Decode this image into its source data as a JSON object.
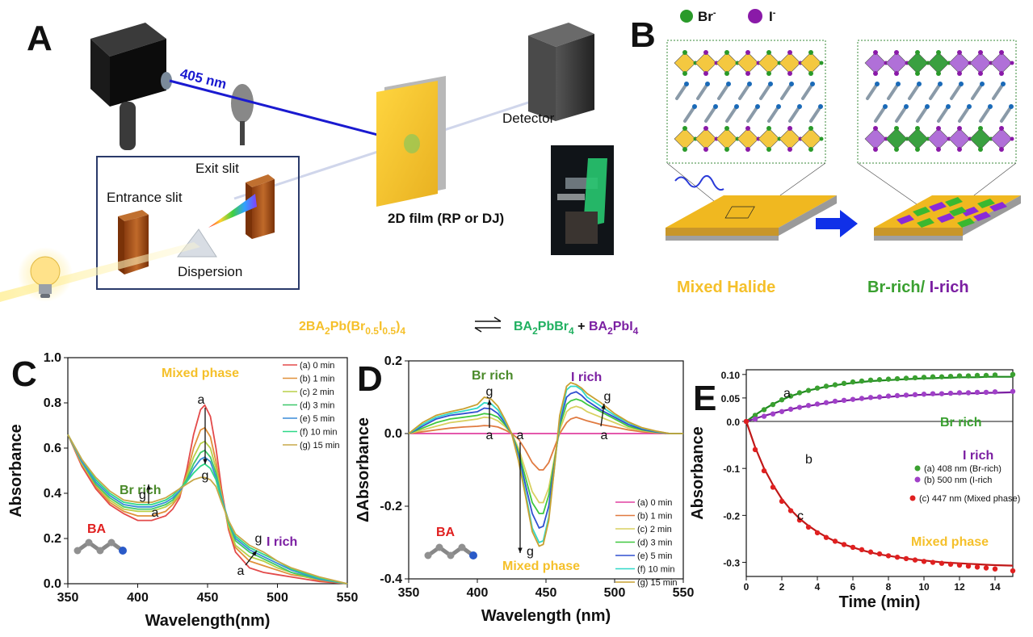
{
  "colors": {
    "mixed": "#f5c02a",
    "br": "#3aa030",
    "i": "#7b1fa2",
    "ba": "#e02020",
    "laser": "#1a1ad0",
    "film": "#f2c230",
    "red_fit": "#c01818",
    "green_fit": "#1f8a1f",
    "purple_fit": "#7b1fa2"
  },
  "panel_a": {
    "letter": "A",
    "laser_label": "405 nm",
    "detector_label": "Detector",
    "exit_slit_label": "Exit slit",
    "entrance_slit_label": "Entrance slit",
    "dispersion_label": "Dispersion",
    "film_label": "2D film (RP or DJ)"
  },
  "panel_b": {
    "letter": "B",
    "legend_br": "Br",
    "legend_i": "I",
    "legend_sup": "-",
    "mixed_label": "Mixed Halide",
    "br_rich_label": "Br-rich/",
    "i_rich_label": " I-rich"
  },
  "equation": {
    "lhs_a": "2BA",
    "lhs_s1": "2",
    "lhs_b": "Pb(Br",
    "lhs_s2": "0.5",
    "lhs_c": "I",
    "lhs_s3": "0.5",
    "lhs_d": ")",
    "lhs_s4": "4",
    "rhs1_a": "BA",
    "rhs1_s1": "2",
    "rhs1_b": "PbBr",
    "rhs1_s2": "4",
    "plus": " + ",
    "rhs2_a": "BA",
    "rhs2_s1": "2",
    "rhs2_b": "PbI",
    "rhs2_s2": "4"
  },
  "chart_data": [
    {
      "panel": "C",
      "type": "line",
      "xlabel": "Wavelength(nm)",
      "ylabel": "Absorbance",
      "xlim": [
        350,
        550
      ],
      "ylim": [
        0.0,
        1.0
      ],
      "xticks": [
        "350",
        "400",
        "450",
        "500",
        "550"
      ],
      "yticks": [
        "0.0",
        "0.2",
        "0.4",
        "0.6",
        "0.8",
        "1.0"
      ],
      "x": [
        350,
        360,
        370,
        380,
        390,
        400,
        410,
        420,
        425,
        430,
        435,
        440,
        445,
        448,
        452,
        456,
        460,
        465,
        470,
        480,
        490,
        500,
        510,
        520,
        530,
        540,
        550
      ],
      "series": [
        {
          "name": "(a) 0 min",
          "color": "#e34a4a",
          "values": [
            0.66,
            0.52,
            0.42,
            0.35,
            0.31,
            0.28,
            0.28,
            0.3,
            0.33,
            0.38,
            0.5,
            0.66,
            0.77,
            0.79,
            0.74,
            0.6,
            0.42,
            0.24,
            0.14,
            0.07,
            0.05,
            0.04,
            0.03,
            0.02,
            0.01,
            0.005,
            0.0
          ]
        },
        {
          "name": "(b) 1 min",
          "color": "#e0903a",
          "values": [
            0.66,
            0.53,
            0.43,
            0.36,
            0.32,
            0.3,
            0.3,
            0.32,
            0.35,
            0.39,
            0.48,
            0.6,
            0.68,
            0.69,
            0.65,
            0.54,
            0.4,
            0.25,
            0.16,
            0.1,
            0.08,
            0.06,
            0.04,
            0.03,
            0.015,
            0.008,
            0.0
          ]
        },
        {
          "name": "(c) 2 min",
          "color": "#b8d048",
          "values": [
            0.66,
            0.53,
            0.44,
            0.37,
            0.33,
            0.32,
            0.32,
            0.34,
            0.36,
            0.4,
            0.47,
            0.56,
            0.62,
            0.63,
            0.6,
            0.51,
            0.39,
            0.26,
            0.17,
            0.12,
            0.1,
            0.07,
            0.05,
            0.03,
            0.02,
            0.01,
            0.0
          ]
        },
        {
          "name": "(d) 3 min",
          "color": "#3ec86a",
          "values": [
            0.66,
            0.54,
            0.44,
            0.38,
            0.34,
            0.33,
            0.33,
            0.35,
            0.37,
            0.41,
            0.46,
            0.53,
            0.58,
            0.59,
            0.56,
            0.49,
            0.38,
            0.27,
            0.19,
            0.14,
            0.11,
            0.08,
            0.05,
            0.035,
            0.02,
            0.01,
            0.0
          ]
        },
        {
          "name": "(e) 5 min",
          "color": "#3a8cd8",
          "values": [
            0.66,
            0.54,
            0.45,
            0.39,
            0.35,
            0.34,
            0.34,
            0.36,
            0.38,
            0.41,
            0.45,
            0.51,
            0.55,
            0.56,
            0.54,
            0.47,
            0.38,
            0.28,
            0.2,
            0.15,
            0.12,
            0.09,
            0.06,
            0.04,
            0.02,
            0.01,
            0.0
          ]
        },
        {
          "name": "(f) 10 min",
          "color": "#2ed888",
          "values": [
            0.66,
            0.55,
            0.46,
            0.4,
            0.36,
            0.35,
            0.35,
            0.37,
            0.39,
            0.42,
            0.45,
            0.49,
            0.52,
            0.53,
            0.51,
            0.46,
            0.37,
            0.28,
            0.21,
            0.16,
            0.13,
            0.1,
            0.065,
            0.045,
            0.025,
            0.012,
            0.0
          ]
        },
        {
          "name": "(g) 15 min",
          "color": "#c8a848",
          "values": [
            0.66,
            0.55,
            0.47,
            0.41,
            0.37,
            0.36,
            0.36,
            0.38,
            0.4,
            0.42,
            0.44,
            0.46,
            0.47,
            0.47,
            0.46,
            0.43,
            0.36,
            0.28,
            0.22,
            0.17,
            0.14,
            0.1,
            0.07,
            0.05,
            0.03,
            0.015,
            0.0
          ]
        }
      ],
      "annotations": {
        "top": "Mixed phase",
        "br": "Br rich",
        "i": "I rich",
        "ba": "BA",
        "a": "a",
        "g": "g"
      }
    },
    {
      "panel": "D",
      "type": "line",
      "xlabel": "Wavelength (nm)",
      "ylabel": "ΔAbsorbance",
      "xlim": [
        350,
        550
      ],
      "ylim": [
        -0.4,
        0.2
      ],
      "xticks": [
        "350",
        "400",
        "450",
        "500",
        "550"
      ],
      "yticks": [
        "-0.4",
        "-0.2",
        "0.0",
        "0.2"
      ],
      "x": [
        350,
        360,
        370,
        380,
        390,
        400,
        405,
        410,
        415,
        420,
        425,
        430,
        435,
        440,
        445,
        448,
        452,
        456,
        460,
        465,
        468,
        472,
        476,
        480,
        490,
        500,
        510,
        520,
        530,
        540,
        550
      ],
      "series": [
        {
          "name": "(a) 0 min",
          "color": "#e040a0",
          "values": [
            0,
            0,
            0,
            0,
            0,
            0,
            0,
            0,
            0,
            0,
            0,
            0,
            0,
            0,
            0,
            0,
            0,
            0,
            0,
            0,
            0,
            0,
            0,
            0,
            0,
            0,
            0,
            0,
            0,
            0,
            0
          ]
        },
        {
          "name": "(b) 1 min",
          "color": "#e07a40",
          "values": [
            0,
            0.005,
            0.01,
            0.015,
            0.018,
            0.02,
            0.022,
            0.021,
            0.018,
            0.01,
            0.0,
            -0.015,
            -0.045,
            -0.08,
            -0.1,
            -0.1,
            -0.08,
            -0.04,
            0.0,
            0.03,
            0.04,
            0.045,
            0.04,
            0.035,
            0.025,
            0.018,
            0.01,
            0.005,
            0.002,
            0.0,
            0.0
          ]
        },
        {
          "name": "(c) 2 min",
          "color": "#d8d060",
          "values": [
            0,
            0.01,
            0.02,
            0.03,
            0.035,
            0.04,
            0.045,
            0.043,
            0.035,
            0.02,
            0.0,
            -0.04,
            -0.1,
            -0.16,
            -0.19,
            -0.19,
            -0.15,
            -0.07,
            0.01,
            0.06,
            0.07,
            0.075,
            0.07,
            0.06,
            0.045,
            0.03,
            0.015,
            0.008,
            0.003,
            0.0,
            0.0
          ]
        },
        {
          "name": "(d) 3 min",
          "color": "#40c840",
          "values": [
            0,
            0.015,
            0.03,
            0.04,
            0.045,
            0.05,
            0.055,
            0.053,
            0.045,
            0.025,
            0.0,
            -0.05,
            -0.12,
            -0.19,
            -0.22,
            -0.22,
            -0.17,
            -0.08,
            0.02,
            0.08,
            0.09,
            0.095,
            0.09,
            0.08,
            0.06,
            0.04,
            0.02,
            0.01,
            0.004,
            0.0,
            0.0
          ]
        },
        {
          "name": "(e) 5 min",
          "color": "#3050d0",
          "values": [
            0,
            0.02,
            0.04,
            0.05,
            0.055,
            0.06,
            0.07,
            0.068,
            0.055,
            0.03,
            0.0,
            -0.06,
            -0.14,
            -0.22,
            -0.26,
            -0.255,
            -0.2,
            -0.09,
            0.03,
            0.1,
            0.11,
            0.115,
            0.105,
            0.09,
            0.065,
            0.045,
            0.025,
            0.012,
            0.005,
            0.0,
            0.0
          ]
        },
        {
          "name": "(f) 10 min",
          "color": "#30d8c8",
          "values": [
            0,
            0.025,
            0.045,
            0.055,
            0.062,
            0.07,
            0.085,
            0.082,
            0.065,
            0.035,
            0.0,
            -0.07,
            -0.16,
            -0.26,
            -0.3,
            -0.295,
            -0.23,
            -0.1,
            0.04,
            0.12,
            0.13,
            0.13,
            0.12,
            0.1,
            0.075,
            0.05,
            0.03,
            0.015,
            0.006,
            0.0,
            0.0
          ]
        },
        {
          "name": "(g) 15 min",
          "color": "#c8a030",
          "values": [
            0,
            0.03,
            0.05,
            0.06,
            0.068,
            0.08,
            0.1,
            0.095,
            0.075,
            0.04,
            0.0,
            -0.075,
            -0.17,
            -0.27,
            -0.31,
            -0.305,
            -0.24,
            -0.1,
            0.05,
            0.13,
            0.14,
            0.135,
            0.125,
            0.11,
            0.085,
            0.055,
            0.032,
            0.016,
            0.007,
            0.0,
            0.0
          ]
        }
      ],
      "annotations": {
        "br": "Br rich",
        "i": "I rich",
        "bottom": "Mixed phase",
        "ba": "BA",
        "a": "a",
        "g": "g"
      }
    },
    {
      "panel": "E",
      "type": "scatter",
      "xlabel": "Time (min)",
      "ylabel": "Absorbance",
      "xlim": [
        0,
        15
      ],
      "ylim": [
        -0.33,
        0.11
      ],
      "xticks": [
        "0",
        "2",
        "4",
        "6",
        "8",
        "10",
        "12",
        "14"
      ],
      "yticks": [
        "-0.3",
        "-0.2",
        "-0.1",
        "0.0",
        "0.05",
        "0.10"
      ],
      "x": [
        0,
        0.5,
        1,
        1.5,
        2,
        2.5,
        3,
        3.5,
        4,
        4.5,
        5,
        5.5,
        6,
        6.5,
        7,
        7.5,
        8,
        8.5,
        9,
        9.5,
        10,
        10.5,
        11,
        11.5,
        12,
        12.5,
        13,
        13.5,
        14,
        15
      ],
      "series": [
        {
          "name": "(a) 408 nm (Br-rich)",
          "color": "#3aa030",
          "fit_color": "#1f8a1f",
          "values": [
            0.0,
            0.013,
            0.025,
            0.036,
            0.046,
            0.054,
            0.061,
            0.066,
            0.071,
            0.075,
            0.078,
            0.081,
            0.084,
            0.086,
            0.088,
            0.089,
            0.09,
            0.091,
            0.092,
            0.093,
            0.094,
            0.095,
            0.095,
            0.096,
            0.097,
            0.097,
            0.098,
            0.098,
            0.099,
            0.1
          ],
          "fit": [
            0.0,
            0.014,
            0.026,
            0.037,
            0.046,
            0.054,
            0.06,
            0.066,
            0.07,
            0.074,
            0.077,
            0.08,
            0.082,
            0.084,
            0.086,
            0.087,
            0.088,
            0.089,
            0.09,
            0.091,
            0.092,
            0.092,
            0.093,
            0.093,
            0.094,
            0.094,
            0.094,
            0.095,
            0.095,
            0.095
          ]
        },
        {
          "name": "(b) 500 nm (I-rich",
          "color": "#a040c8",
          "fit_color": "#7b1fa2",
          "values": [
            0.0,
            0.005,
            0.011,
            0.016,
            0.021,
            0.026,
            0.03,
            0.034,
            0.037,
            0.04,
            0.043,
            0.045,
            0.047,
            0.049,
            0.051,
            0.052,
            0.054,
            0.055,
            0.056,
            0.057,
            0.058,
            0.059,
            0.059,
            0.06,
            0.061,
            0.061,
            0.062,
            0.062,
            0.063,
            0.064
          ],
          "fit": [
            0.0,
            0.006,
            0.012,
            0.017,
            0.022,
            0.026,
            0.03,
            0.033,
            0.036,
            0.039,
            0.042,
            0.044,
            0.046,
            0.048,
            0.05,
            0.051,
            0.052,
            0.054,
            0.055,
            0.056,
            0.057,
            0.057,
            0.058,
            0.059,
            0.059,
            0.06,
            0.06,
            0.061,
            0.061,
            0.062
          ]
        },
        {
          "name": "(c) 447 nm (Mixed phase)",
          "color": "#e02020",
          "fit_color": "#c01818",
          "values": [
            0.0,
            -0.06,
            -0.105,
            -0.14,
            -0.17,
            -0.19,
            -0.21,
            -0.225,
            -0.237,
            -0.247,
            -0.255,
            -0.262,
            -0.268,
            -0.273,
            -0.278,
            -0.282,
            -0.286,
            -0.289,
            -0.292,
            -0.295,
            -0.298,
            -0.3,
            -0.302,
            -0.304,
            -0.306,
            -0.308,
            -0.31,
            -0.312,
            -0.314,
            -0.318
          ],
          "fit": [
            0.0,
            -0.055,
            -0.1,
            -0.135,
            -0.165,
            -0.188,
            -0.207,
            -0.222,
            -0.235,
            -0.246,
            -0.255,
            -0.262,
            -0.268,
            -0.274,
            -0.279,
            -0.283,
            -0.286,
            -0.289,
            -0.292,
            -0.294,
            -0.296,
            -0.298,
            -0.3,
            -0.301,
            -0.302,
            -0.303,
            -0.304,
            -0.305,
            -0.306,
            -0.307
          ]
        }
      ],
      "annotations": {
        "br": "Br rich",
        "i": "I rich",
        "mixed": "Mixed phase",
        "a": "a",
        "b": "b",
        "c": "c"
      }
    }
  ]
}
